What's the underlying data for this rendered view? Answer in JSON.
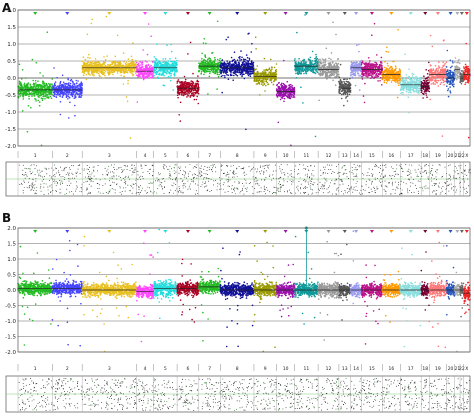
{
  "figure": {
    "panels": [
      "A",
      "B"
    ]
  },
  "chart_data": [
    {
      "panel": "A",
      "type": "scatter",
      "title": "",
      "xlabel": "",
      "ylabel": "",
      "ylim": [
        -2.0,
        2.0
      ],
      "yticks": [
        "2.0",
        "1.5",
        "1.0",
        "0.5",
        "0.0",
        "-0.5",
        "-1.0",
        "-1.5",
        "-2.0"
      ],
      "chromosome_labels": [
        "1",
        "2",
        "3",
        "4",
        "5",
        "6",
        "7",
        "8",
        "9",
        "10",
        "11",
        "12",
        "13",
        "14",
        "15",
        "16",
        "17",
        "18",
        "19",
        "20",
        "21",
        "22",
        "X"
      ],
      "grid": true,
      "segments": [
        {
          "chr": "1",
          "x0": 0.0,
          "x1": 0.076,
          "mean": -0.35,
          "spread": 0.18,
          "color": "#22bb22"
        },
        {
          "chr": "2",
          "x0": 0.076,
          "x1": 0.142,
          "mean": -0.35,
          "spread": 0.18,
          "color": "#4444ff"
        },
        {
          "chr": "3",
          "x0": 0.142,
          "x1": 0.262,
          "mean": 0.3,
          "spread": 0.16,
          "color": "#e8c020"
        },
        {
          "chr": "4",
          "x0": 0.262,
          "x1": 0.3,
          "mean": 0.2,
          "spread": 0.18,
          "color": "#ff44ff"
        },
        {
          "chr": "5",
          "x0": 0.3,
          "x1": 0.352,
          "mean": 0.3,
          "spread": 0.18,
          "color": "#22dddd"
        },
        {
          "chr": "6",
          "x0": 0.352,
          "x1": 0.4,
          "mean": -0.3,
          "spread": 0.18,
          "color": "#aa0022"
        },
        {
          "chr": "7",
          "x0": 0.4,
          "x1": 0.448,
          "mean": 0.35,
          "spread": 0.18,
          "color": "#22bb22"
        },
        {
          "chr": "8",
          "x0": 0.448,
          "x1": 0.522,
          "mean": 0.3,
          "spread": 0.18,
          "color": "#111199"
        },
        {
          "chr": "9",
          "x0": 0.522,
          "x1": 0.572,
          "mean": 0.05,
          "spread": 0.18,
          "color": "#999900"
        },
        {
          "chr": "10",
          "x0": 0.572,
          "x1": 0.612,
          "mean": -0.4,
          "spread": 0.18,
          "color": "#9911aa"
        },
        {
          "chr": "11",
          "x0": 0.612,
          "x1": 0.664,
          "mean": 0.35,
          "spread": 0.18,
          "color": "#119999"
        },
        {
          "chr": "12",
          "x0": 0.664,
          "x1": 0.71,
          "mean": 0.25,
          "spread": 0.2,
          "color": "#999999"
        },
        {
          "chr": "13",
          "x0": 0.71,
          "x1": 0.736,
          "mean": -0.3,
          "spread": 0.18,
          "color": "#555555"
        },
        {
          "chr": "14",
          "x0": 0.736,
          "x1": 0.76,
          "mean": 0.3,
          "spread": 0.18,
          "color": "#9999ee"
        },
        {
          "chr": "15",
          "x0": 0.76,
          "x1": 0.806,
          "mean": 0.25,
          "spread": 0.18,
          "color": "#bb1188"
        },
        {
          "chr": "16",
          "x0": 0.806,
          "x1": 0.846,
          "mean": 0.1,
          "spread": 0.18,
          "color": "#ff9900"
        },
        {
          "chr": "17",
          "x0": 0.846,
          "x1": 0.892,
          "mean": -0.2,
          "spread": 0.18,
          "color": "#88dddd"
        },
        {
          "chr": "18",
          "x0": 0.892,
          "x1": 0.91,
          "mean": -0.25,
          "spread": 0.18,
          "color": "#770033"
        },
        {
          "chr": "19",
          "x0": 0.91,
          "x1": 0.948,
          "mean": 0.1,
          "spread": 0.22,
          "color": "#ff7777"
        },
        {
          "chr": "20",
          "x0": 0.948,
          "x1": 0.966,
          "mean": 0.0,
          "spread": 0.3,
          "color": "#2255bb"
        },
        {
          "chr": "21",
          "x0": 0.966,
          "x1": 0.978,
          "mean": 0.25,
          "spread": 0.2,
          "color": "#aaaaaa"
        },
        {
          "chr": "22",
          "x0": 0.978,
          "x1": 0.986,
          "mean": 0.0,
          "spread": 0.18,
          "color": "#666666"
        },
        {
          "chr": "X",
          "x0": 0.986,
          "x1": 1.0,
          "mean": 0.1,
          "spread": 0.22,
          "color": "#ee2222"
        }
      ]
    },
    {
      "panel": "B",
      "type": "scatter",
      "title": "",
      "xlabel": "",
      "ylabel": "",
      "ylim": [
        -2.0,
        2.0
      ],
      "yticks": [
        "2.0",
        "1.5",
        "1.0",
        "0.5",
        "0.0",
        "-0.5",
        "-1.0",
        "-1.5",
        "-2.0"
      ],
      "chromosome_labels": [
        "1",
        "2",
        "3",
        "4",
        "5",
        "6",
        "7",
        "8",
        "9",
        "10",
        "11",
        "12",
        "13",
        "14",
        "15",
        "16",
        "17",
        "18",
        "19",
        "20",
        "21",
        "22",
        "X"
      ],
      "grid": true,
      "segments": [
        {
          "chr": "1",
          "x0": 0.0,
          "x1": 0.076,
          "mean": 0.05,
          "spread": 0.16,
          "color": "#22bb22"
        },
        {
          "chr": "2",
          "x0": 0.076,
          "x1": 0.142,
          "mean": 0.05,
          "spread": 0.16,
          "color": "#4444ff"
        },
        {
          "chr": "3",
          "x0": 0.142,
          "x1": 0.262,
          "mean": 0.0,
          "spread": 0.16,
          "color": "#e8c020"
        },
        {
          "chr": "4",
          "x0": 0.262,
          "x1": 0.3,
          "mean": -0.05,
          "spread": 0.16,
          "color": "#ff44ff"
        },
        {
          "chr": "5",
          "x0": 0.3,
          "x1": 0.352,
          "mean": 0.05,
          "spread": 0.2,
          "color": "#22dddd"
        },
        {
          "chr": "6",
          "x0": 0.352,
          "x1": 0.4,
          "mean": 0.05,
          "spread": 0.16,
          "color": "#aa0022"
        },
        {
          "chr": "7",
          "x0": 0.4,
          "x1": 0.448,
          "mean": 0.1,
          "spread": 0.16,
          "color": "#22bb22"
        },
        {
          "chr": "8",
          "x0": 0.448,
          "x1": 0.522,
          "mean": 0.0,
          "spread": 0.16,
          "color": "#111199"
        },
        {
          "chr": "9",
          "x0": 0.522,
          "x1": 0.572,
          "mean": 0.0,
          "spread": 0.18,
          "color": "#999900"
        },
        {
          "chr": "10",
          "x0": 0.572,
          "x1": 0.612,
          "mean": 0.0,
          "spread": 0.16,
          "color": "#9911aa"
        },
        {
          "chr": "11",
          "x0": 0.612,
          "x1": 0.664,
          "mean": 0.0,
          "spread": 0.16,
          "color": "#119999"
        },
        {
          "chr": "12",
          "x0": 0.664,
          "x1": 0.71,
          "mean": 0.0,
          "spread": 0.18,
          "color": "#999999"
        },
        {
          "chr": "13",
          "x0": 0.71,
          "x1": 0.736,
          "mean": 0.0,
          "spread": 0.16,
          "color": "#555555"
        },
        {
          "chr": "14",
          "x0": 0.736,
          "x1": 0.76,
          "mean": 0.0,
          "spread": 0.16,
          "color": "#9999ee"
        },
        {
          "chr": "15",
          "x0": 0.76,
          "x1": 0.806,
          "mean": 0.0,
          "spread": 0.16,
          "color": "#bb1188"
        },
        {
          "chr": "16",
          "x0": 0.806,
          "x1": 0.846,
          "mean": 0.0,
          "spread": 0.16,
          "color": "#ff9900"
        },
        {
          "chr": "17",
          "x0": 0.846,
          "x1": 0.892,
          "mean": 0.0,
          "spread": 0.16,
          "color": "#88dddd"
        },
        {
          "chr": "18",
          "x0": 0.892,
          "x1": 0.91,
          "mean": 0.0,
          "spread": 0.16,
          "color": "#770033"
        },
        {
          "chr": "19",
          "x0": 0.91,
          "x1": 0.948,
          "mean": 0.0,
          "spread": 0.2,
          "color": "#ff7777"
        },
        {
          "chr": "20",
          "x0": 0.948,
          "x1": 0.966,
          "mean": 0.0,
          "spread": 0.18,
          "color": "#2255bb"
        },
        {
          "chr": "21",
          "x0": 0.966,
          "x1": 0.978,
          "mean": 0.0,
          "spread": 0.16,
          "color": "#aaaaaa"
        },
        {
          "chr": "22",
          "x0": 0.978,
          "x1": 0.986,
          "mean": 0.0,
          "spread": 0.16,
          "color": "#666666"
        },
        {
          "chr": "X",
          "x0": 0.986,
          "x1": 1.0,
          "mean": -0.1,
          "spread": 0.22,
          "color": "#ee2222"
        }
      ],
      "spike": {
        "chr": "11",
        "value": 2.0
      }
    }
  ]
}
